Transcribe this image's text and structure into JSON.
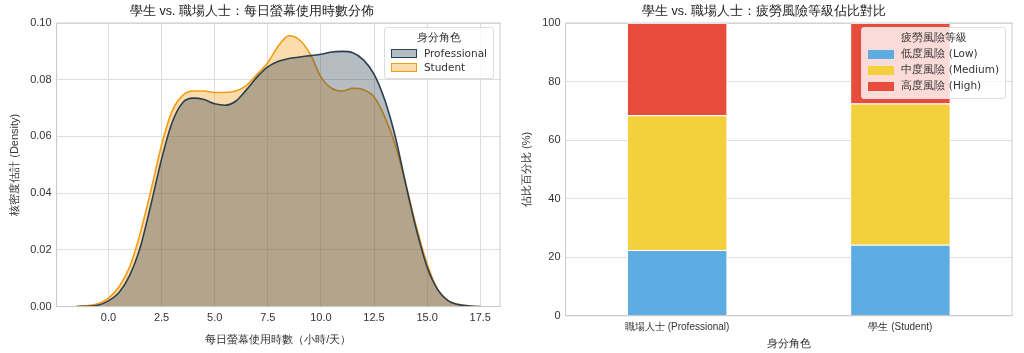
{
  "chart_data": [
    {
      "type": "area",
      "title": "學生 vs. 職場人士：每日螢幕使用時數分佈",
      "xlabel": "每日螢幕使用時數（小時/天）",
      "ylabel": "核密度估計 (Density)",
      "legend_title": "身分角色",
      "legend": "top right",
      "grid": true,
      "x": [
        -1.5,
        -0.5,
        0,
        0.5,
        1,
        1.5,
        2,
        2.5,
        3,
        3.5,
        4,
        4.5,
        5,
        5.5,
        6,
        6.5,
        7,
        7.5,
        8,
        8.5,
        9,
        9.5,
        10,
        10.5,
        11,
        11.5,
        12,
        12.5,
        13,
        13.5,
        14,
        14.5,
        15,
        15.5,
        16,
        16.5,
        17,
        17.5
      ],
      "xlim": [
        -2.44,
        18.43
      ],
      "ylim": [
        0,
        0.1
      ],
      "xticks": [
        {
          "value": 0,
          "label": "0.0"
        },
        {
          "value": 2.5,
          "label": "2.5"
        },
        {
          "value": 5,
          "label": "5.0"
        },
        {
          "value": 7.5,
          "label": "7.5"
        },
        {
          "value": 10,
          "label": "10.0"
        },
        {
          "value": 12.5,
          "label": "12.5"
        },
        {
          "value": 15,
          "label": "15.0"
        },
        {
          "value": 17.5,
          "label": "17.5"
        }
      ],
      "yticks": [
        {
          "value": 0,
          "label": "0.00"
        },
        {
          "value": 0.02,
          "label": "0.02"
        },
        {
          "value": 0.04,
          "label": "0.04"
        },
        {
          "value": 0.06,
          "label": "0.06"
        },
        {
          "value": 0.08,
          "label": "0.08"
        },
        {
          "value": 0.1,
          "label": "0.10"
        }
      ],
      "series": [
        {
          "name": "Professional",
          "color": "#2c3e50",
          "values": [
            0,
            0.0005,
            0.002,
            0.005,
            0.011,
            0.021,
            0.036,
            0.052,
            0.065,
            0.072,
            0.0735,
            0.073,
            0.0715,
            0.071,
            0.0725,
            0.0765,
            0.081,
            0.0845,
            0.0865,
            0.0875,
            0.088,
            0.0885,
            0.089,
            0.0898,
            0.09,
            0.0895,
            0.087,
            0.082,
            0.073,
            0.06,
            0.043,
            0.027,
            0.014,
            0.006,
            0.002,
            0.0007,
            0.0002,
            0
          ]
        },
        {
          "name": "Student",
          "color": "#f39c12",
          "values": [
            0,
            0.001,
            0.003,
            0.007,
            0.014,
            0.026,
            0.041,
            0.057,
            0.069,
            0.0745,
            0.076,
            0.076,
            0.0755,
            0.0755,
            0.076,
            0.078,
            0.082,
            0.086,
            0.092,
            0.0955,
            0.094,
            0.089,
            0.081,
            0.077,
            0.076,
            0.077,
            0.0765,
            0.074,
            0.067,
            0.057,
            0.043,
            0.028,
            0.015,
            0.006,
            0.002,
            0.0007,
            0.0002,
            0
          ]
        }
      ]
    },
    {
      "type": "bar",
      "stacked": true,
      "title": "學生 vs. 職場人士：疲勞風險等級佔比對比",
      "xlabel": "身分角色",
      "ylabel": "佔比百分比 (%)",
      "legend_title": "疲勞風險等級",
      "legend": "top right",
      "grid": "y",
      "categories": [
        "職場人士 (Professional)",
        "學生 (Student)"
      ],
      "ylim": [
        0,
        100
      ],
      "yticks": [
        0,
        20,
        40,
        60,
        80,
        100
      ],
      "series": [
        {
          "name": "低度風險 (Low)",
          "color": "#5dade2",
          "values": [
            22.5,
            24.3
          ]
        },
        {
          "name": "中度風險 (Medium)",
          "color": "#f4d03f",
          "values": [
            46,
            48.2
          ]
        },
        {
          "name": "高度風險 (High)",
          "color": "#e74c3c",
          "values": [
            31.5,
            27.5
          ]
        }
      ]
    }
  ]
}
